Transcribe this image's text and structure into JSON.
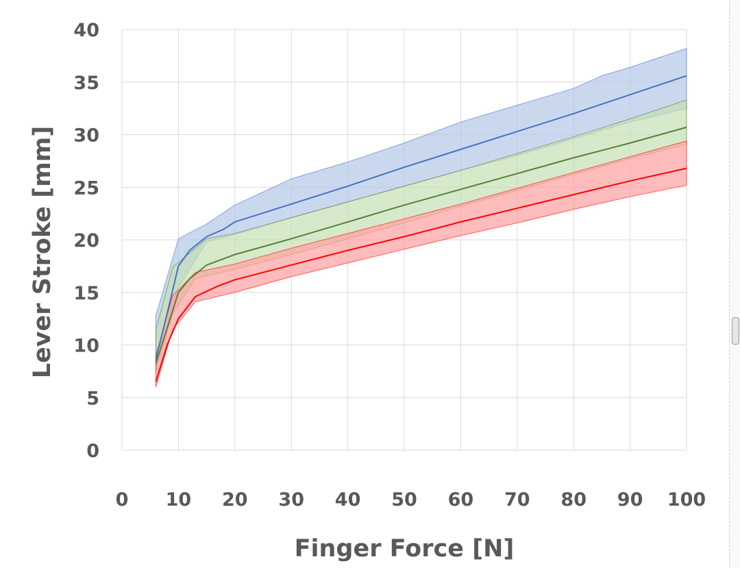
{
  "chart_data": {
    "type": "line",
    "title": "",
    "xlabel": "Finger Force [N]",
    "ylabel": "Lever Stroke [mm]",
    "xlim": [
      0,
      100
    ],
    "ylim": [
      0,
      40
    ],
    "xticks": [
      0,
      10,
      20,
      30,
      40,
      50,
      60,
      70,
      80,
      90,
      100
    ],
    "yticks": [
      0,
      5,
      10,
      15,
      20,
      25,
      30,
      35,
      40
    ],
    "grid": true,
    "legend": "none",
    "series": [
      {
        "name": "blue",
        "color": "#4472c4",
        "band_color": "#b4c7e7",
        "mean": {
          "x": [
            6,
            8,
            10,
            12,
            15,
            18,
            20,
            30,
            40,
            50,
            60,
            70,
            80,
            90,
            100
          ],
          "y": [
            8.6,
            13,
            17.5,
            19,
            20.3,
            21,
            21.7,
            23.4,
            25.1,
            26.9,
            28.6,
            30.3,
            32,
            33.8,
            35.6
          ]
        },
        "upper": {
          "x": [
            6,
            10,
            15,
            20,
            30,
            40,
            50,
            60,
            70,
            80,
            85,
            90,
            100
          ],
          "y": [
            12.8,
            20.1,
            21.5,
            23.3,
            25.8,
            27.4,
            29.2,
            31.2,
            32.8,
            34.4,
            35.6,
            36.4,
            38.2
          ]
        },
        "lower": {
          "x": [
            6,
            10,
            15,
            20,
            30,
            40,
            50,
            60,
            70,
            80,
            90,
            100
          ],
          "y": [
            8,
            15.5,
            19.8,
            20.5,
            22.1,
            23.6,
            25.1,
            26.6,
            28,
            29.6,
            31.2,
            32.5
          ]
        }
      },
      {
        "name": "green",
        "color": "#548235",
        "band_color": "#c5e0b4",
        "mean": {
          "x": [
            6,
            10,
            12,
            15,
            20,
            30,
            40,
            50,
            60,
            70,
            80,
            90,
            100
          ],
          "y": [
            8.2,
            15,
            16.3,
            17.6,
            18.6,
            20.1,
            21.7,
            23.3,
            24.8,
            26.3,
            27.8,
            29.2,
            30.7
          ]
        },
        "upper": {
          "x": [
            6,
            9,
            15,
            20,
            30,
            40,
            50,
            60,
            70,
            80,
            90,
            100
          ],
          "y": [
            11.4,
            17.4,
            20.1,
            20.6,
            22.1,
            23.6,
            25.1,
            26.6,
            28.2,
            29.8,
            31.5,
            33.3
          ]
        },
        "lower": {
          "x": [
            6,
            9,
            13,
            20,
            30,
            40,
            50,
            60,
            70,
            80,
            90,
            100
          ],
          "y": [
            7.5,
            13,
            16.3,
            17.2,
            18.6,
            20.1,
            21.6,
            23.2,
            24.7,
            26.2,
            27.7,
            29.1
          ]
        }
      },
      {
        "name": "red",
        "color": "#ff0000",
        "band_color": "#ff9f9f",
        "mean": {
          "x": [
            6,
            8,
            10,
            13,
            17,
            20,
            30,
            40,
            50,
            60,
            70,
            80,
            90,
            100
          ],
          "y": [
            6.5,
            10,
            12.5,
            14.6,
            15.6,
            16.2,
            17.6,
            19,
            20.3,
            21.7,
            23,
            24.3,
            25.6,
            26.8
          ]
        },
        "upper": {
          "x": [
            6,
            9,
            13,
            20,
            30,
            40,
            50,
            60,
            70,
            80,
            90,
            100
          ],
          "y": [
            9,
            14.7,
            16.9,
            17.7,
            19.2,
            20.6,
            22,
            23.4,
            24.9,
            26.4,
            27.9,
            29.4
          ]
        },
        "lower": {
          "x": [
            6,
            9,
            13,
            20,
            30,
            40,
            50,
            60,
            70,
            80,
            90,
            100
          ],
          "y": [
            6,
            11.5,
            14.1,
            15,
            16.5,
            17.8,
            19.1,
            20.4,
            21.6,
            22.9,
            24.1,
            25.2
          ]
        }
      }
    ]
  }
}
